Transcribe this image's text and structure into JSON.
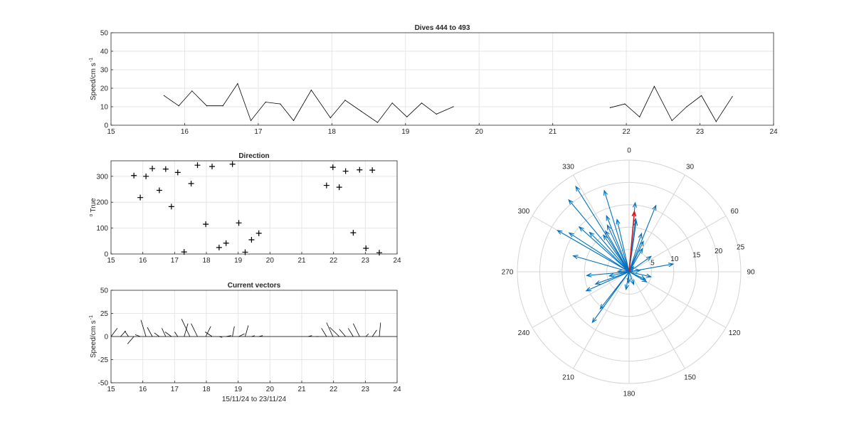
{
  "chart_data": [
    {
      "type": "line",
      "title": "Dives 444 to 493",
      "xlabel": "",
      "ylabel": "Speed/cm s",
      "ylabel_sup": "-1",
      "xlim": [
        15,
        24
      ],
      "ylim": [
        0,
        50
      ],
      "xticks": [
        "15",
        "16",
        "17",
        "18",
        "19",
        "20",
        "21",
        "22",
        "23",
        "24"
      ],
      "yticks": [
        "0",
        "10",
        "20",
        "30",
        "40",
        "50"
      ],
      "grid": true,
      "segments": [
        {
          "x": [
            15.72,
            15.92,
            16.1,
            16.3,
            16.52,
            16.72,
            16.9,
            17.1,
            17.3,
            17.48,
            17.72,
            17.98,
            18.18,
            18.4,
            18.62,
            18.82,
            19.02,
            19.22,
            19.42,
            19.65
          ],
          "y": [
            16,
            10.5,
            18.5,
            10.5,
            10.5,
            22.5,
            2.5,
            12.5,
            11.5,
            2.5,
            19,
            4,
            13.5,
            7.5,
            1.5,
            12,
            4.5,
            12,
            6,
            10
          ]
        },
        {
          "x": [
            21.78,
            21.98,
            22.18,
            22.38,
            22.62,
            22.82,
            23.02,
            23.22,
            23.44
          ],
          "y": [
            9.5,
            11.5,
            4.5,
            21,
            2.5,
            10,
            16,
            2,
            15.5
          ]
        }
      ]
    },
    {
      "type": "scatter",
      "title": "Direction",
      "xlabel": "",
      "ylabel": "True",
      "ylabel_sup": "o",
      "xlim": [
        15,
        24
      ],
      "ylim": [
        0,
        360
      ],
      "xticks": [
        "15",
        "16",
        "17",
        "18",
        "19",
        "20",
        "21",
        "22",
        "23",
        "24"
      ],
      "yticks": [
        "0",
        "100",
        "200",
        "300"
      ],
      "grid": true,
      "x": [
        15.72,
        15.92,
        16.1,
        16.3,
        16.52,
        16.72,
        16.9,
        17.1,
        17.3,
        17.52,
        17.72,
        17.98,
        18.18,
        18.4,
        18.62,
        18.82,
        19.02,
        19.22,
        19.42,
        19.65,
        21.78,
        21.98,
        22.18,
        22.38,
        22.62,
        22.82,
        23.02,
        23.22,
        23.44
      ],
      "y": [
        303,
        218,
        300,
        330,
        246,
        328,
        183,
        315,
        8,
        272,
        343,
        115,
        338,
        25,
        42,
        347,
        120,
        7,
        55,
        80,
        265,
        335,
        258,
        320,
        82,
        325,
        22,
        324,
        5
      ]
    },
    {
      "type": "line",
      "title": "Current vectors",
      "xlabel": "15/11/24 to 23/11/24",
      "ylabel": "Speed/cm s",
      "ylabel_sup": "-1",
      "xlim": [
        15,
        24
      ],
      "ylim": [
        -50,
        50
      ],
      "xticks": [
        "15",
        "16",
        "17",
        "18",
        "19",
        "20",
        "21",
        "22",
        "23",
        "24"
      ],
      "yticks": [
        "-50",
        "-25",
        "0",
        "25",
        "50"
      ],
      "grid": true,
      "vectors": {
        "x": [
          15.0,
          15.3,
          15.55,
          15.72,
          15.92,
          16.1,
          16.3,
          16.52,
          16.72,
          16.9,
          17.1,
          17.3,
          17.48,
          17.72,
          17.98,
          18.18,
          18.4,
          18.62,
          18.82,
          19.02,
          19.22,
          19.42,
          19.65,
          21.2,
          21.45,
          21.78,
          21.98,
          22.18,
          22.38,
          22.62,
          22.82,
          23.02,
          23.22,
          23.44
        ],
        "u": [
          1.0,
          0.8,
          -0.6,
          -1.0,
          -0.8,
          -0.8,
          -0.8,
          -0.8,
          -0.6,
          -1.0,
          -0.5,
          0.6,
          -1.3,
          -1.0,
          0.8,
          -1.1,
          0.5,
          0.8,
          0.3,
          0.9,
          0.5,
          0.5,
          0.6,
          0.6,
          0.4,
          -0.8,
          -1.0,
          -1.5,
          -1.0,
          -0.8,
          -1.0,
          0.4,
          0.7,
          0.2
        ],
        "v": [
          9,
          6,
          6,
          -8,
          2,
          18,
          10,
          4,
          9,
          5,
          5,
          14,
          19,
          14,
          11,
          5,
          -1,
          1,
          11,
          3,
          12,
          1,
          1,
          1,
          0,
          9,
          15,
          10,
          8,
          9,
          14,
          3,
          7,
          15
        ]
      }
    },
    {
      "type": "scatter",
      "title": "",
      "subtype": "polar-compass",
      "angle_labels": [
        "0",
        "30",
        "60",
        "90",
        "120",
        "150",
        "180",
        "210",
        "240",
        "270",
        "300",
        "330"
      ],
      "radius_ticks": [
        "5",
        "10",
        "15",
        "20",
        "25"
      ],
      "rmax": 25,
      "colors": {
        "vectors": "#0072bd",
        "mean": "#d11a1a",
        "grid": "#d4d4d4"
      },
      "vectors": [
        {
          "dir": 303,
          "speed": 16
        },
        {
          "dir": 218,
          "speed": 10.5
        },
        {
          "dir": 300,
          "speed": 18.5
        },
        {
          "dir": 330,
          "speed": 10.5
        },
        {
          "dir": 246,
          "speed": 10.5
        },
        {
          "dir": 328,
          "speed": 22.5
        },
        {
          "dir": 183,
          "speed": 2.5
        },
        {
          "dir": 315,
          "speed": 12.5
        },
        {
          "dir": 8,
          "speed": 11.5
        },
        {
          "dir": 272,
          "speed": 2.5
        },
        {
          "dir": 343,
          "speed": 19
        },
        {
          "dir": 115,
          "speed": 4
        },
        {
          "dir": 338,
          "speed": 13.5
        },
        {
          "dir": 25,
          "speed": 7.5
        },
        {
          "dir": 42,
          "speed": 1.5
        },
        {
          "dir": 347,
          "speed": 12
        },
        {
          "dir": 120,
          "speed": 4.5
        },
        {
          "dir": 7,
          "speed": 12
        },
        {
          "dir": 55,
          "speed": 6
        },
        {
          "dir": 80,
          "speed": 10
        },
        {
          "dir": 265,
          "speed": 9.5
        },
        {
          "dir": 335,
          "speed": 11.5
        },
        {
          "dir": 258,
          "speed": 4.5
        },
        {
          "dir": 320,
          "speed": 21
        },
        {
          "dir": 82,
          "speed": 2.5
        },
        {
          "dir": 325,
          "speed": 10
        },
        {
          "dir": 22,
          "speed": 16
        },
        {
          "dir": 324,
          "speed": 2
        },
        {
          "dir": 5,
          "speed": 15.5
        },
        {
          "dir": 216,
          "speed": 14
        },
        {
          "dir": 250,
          "speed": 8
        },
        {
          "dir": 286,
          "speed": 13
        },
        {
          "dir": 312,
          "speed": 15
        },
        {
          "dir": 18,
          "speed": 9
        },
        {
          "dir": 30,
          "speed": 6
        },
        {
          "dir": 103,
          "speed": 5
        },
        {
          "dir": 190,
          "speed": 4
        },
        {
          "dir": 160,
          "speed": 3
        }
      ],
      "mean_vector": {
        "dir": 5,
        "speed": 13.5
      }
    }
  ]
}
